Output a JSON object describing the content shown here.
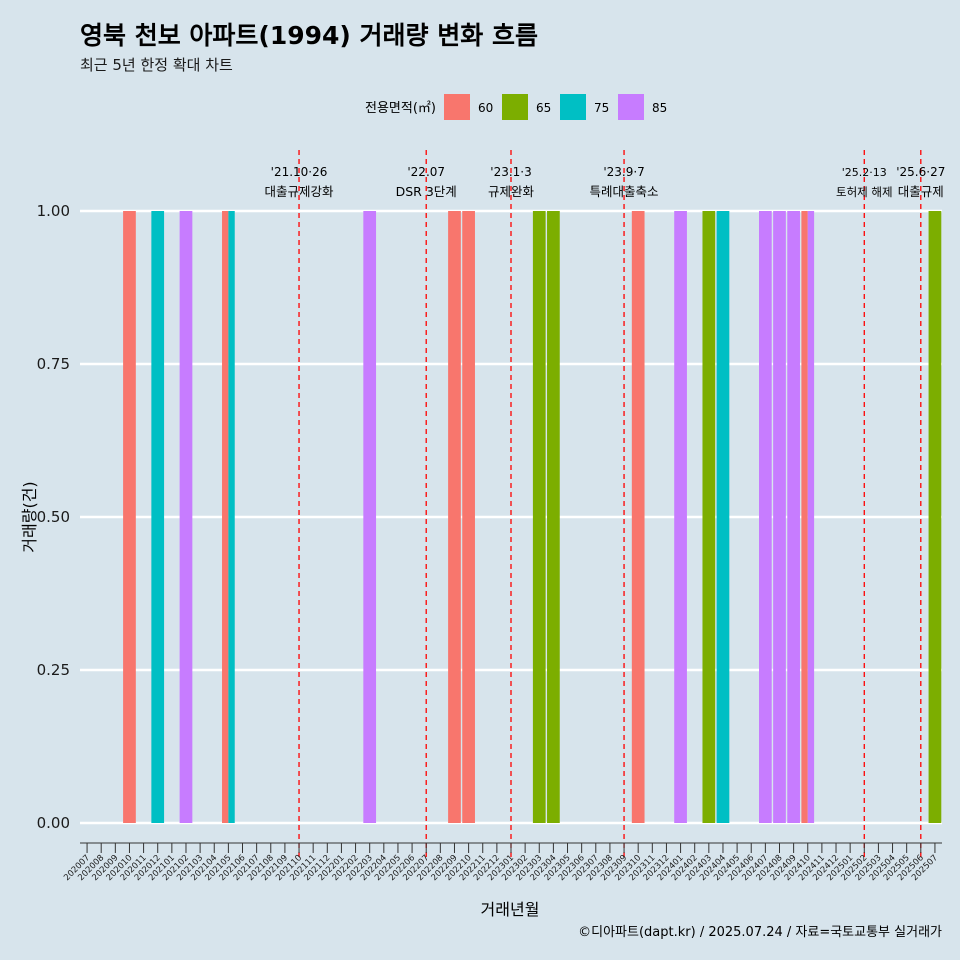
{
  "chart_data": {
    "type": "bar",
    "title": "영북 천보 아파트(1994) 거래량 변화 흐름",
    "subtitle": "최근 5년 한정 확대 차트",
    "xlabel": "거래년월",
    "ylabel": "거래량(건)",
    "ylim": [
      0,
      1
    ],
    "yticks": [
      "0.00",
      "0.25",
      "0.50",
      "0.75",
      "1.00"
    ],
    "grid": true,
    "legend_position": "top",
    "legend": {
      "title": "전용면적(㎡)",
      "items": [
        {
          "name": "60",
          "color": "#F8766D"
        },
        {
          "name": "65",
          "color": "#7CAE00"
        },
        {
          "name": "75",
          "color": "#00BFC4"
        },
        {
          "name": "85",
          "color": "#C77CFF"
        }
      ]
    },
    "categories": [
      "202007",
      "202008",
      "202009",
      "202010",
      "202011",
      "202012",
      "202101",
      "202102",
      "202103",
      "202104",
      "202105",
      "202106",
      "202107",
      "202108",
      "202109",
      "202110",
      "202111",
      "202112",
      "202201",
      "202202",
      "202203",
      "202204",
      "202205",
      "202206",
      "202207",
      "202208",
      "202209",
      "202210",
      "202211",
      "202212",
      "202301",
      "202302",
      "202303",
      "202304",
      "202305",
      "202306",
      "202307",
      "202308",
      "202309",
      "202310",
      "202311",
      "202312",
      "202401",
      "202402",
      "202403",
      "202404",
      "202405",
      "202406",
      "202407",
      "202408",
      "202409",
      "202410",
      "202411",
      "202412",
      "202501",
      "202502",
      "202503",
      "202504",
      "202505",
      "202506",
      "202507"
    ],
    "bars": [
      {
        "month": "202010",
        "area": "60",
        "value": 1
      },
      {
        "month": "202012",
        "area": "75",
        "value": 1
      },
      {
        "month": "202102",
        "area": "85",
        "value": 1
      },
      {
        "month": "202105",
        "area": "60",
        "value": 1
      },
      {
        "month": "202105",
        "area": "75",
        "value": 1
      },
      {
        "month": "202203",
        "area": "85",
        "value": 1
      },
      {
        "month": "202209",
        "area": "60",
        "value": 1
      },
      {
        "month": "202210",
        "area": "60",
        "value": 1
      },
      {
        "month": "202303",
        "area": "65",
        "value": 1
      },
      {
        "month": "202304",
        "area": "65",
        "value": 1
      },
      {
        "month": "202310",
        "area": "60",
        "value": 1
      },
      {
        "month": "202401",
        "area": "85",
        "value": 1
      },
      {
        "month": "202403",
        "area": "65",
        "value": 1
      },
      {
        "month": "202404",
        "area": "75",
        "value": 1
      },
      {
        "month": "202407",
        "area": "85",
        "value": 1
      },
      {
        "month": "202408",
        "area": "85",
        "value": 1
      },
      {
        "month": "202409",
        "area": "85",
        "value": 1
      },
      {
        "month": "202410",
        "area": "60",
        "value": 1
      },
      {
        "month": "202410",
        "area": "85",
        "value": 1
      },
      {
        "month": "202507",
        "area": "65",
        "value": 1
      }
    ],
    "annotations": [
      {
        "month": "202110",
        "date": "'21.10·26",
        "label": "대출규제강화"
      },
      {
        "month": "202207",
        "date": "'22.07",
        "label": "DSR 3단계"
      },
      {
        "month": "202301",
        "date": "'23.1·3",
        "label": "규제완화"
      },
      {
        "month": "202309",
        "date": "'23.9·7",
        "label": "특례대출축소"
      },
      {
        "month": "202502",
        "date": "'25.2·13",
        "label": "토허제 해제"
      },
      {
        "month": "202506",
        "date": "'25.6·27",
        "label": "대출규제"
      }
    ],
    "caption": "©디아파트(dapt.kr) / 2025.07.24 / 자료=국토교통부 실거래가"
  }
}
